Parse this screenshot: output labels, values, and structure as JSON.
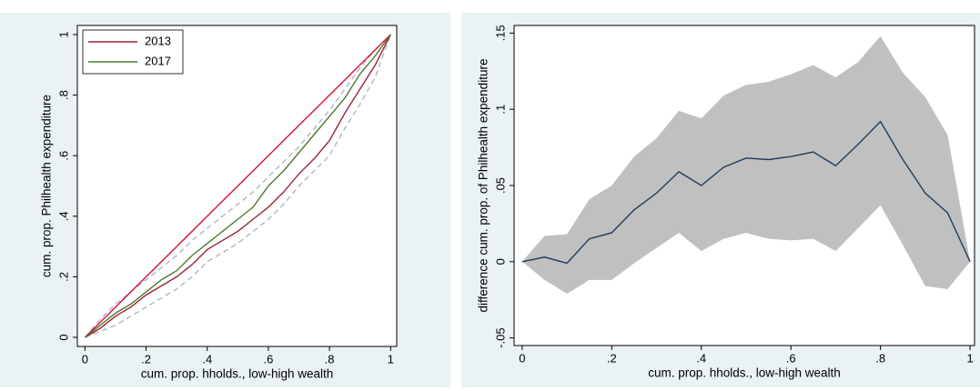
{
  "chart_data": [
    {
      "type": "line",
      "x": [
        0,
        0.05,
        0.1,
        0.15,
        0.2,
        0.25,
        0.3,
        0.35,
        0.4,
        0.45,
        0.5,
        0.55,
        0.6,
        0.65,
        0.7,
        0.75,
        0.8,
        0.85,
        0.9,
        0.95,
        1
      ],
      "xlabel": "cum. prop. hholds., low-high wealth",
      "ylabel": "cum. prop. Philhealth expenditure",
      "xlim": [
        -0.025,
        1.02
      ],
      "ylim": [
        -0.03,
        1.03
      ],
      "xticks": [
        0,
        {
          "value": 0.2,
          "label": ".2"
        },
        {
          "value": 0.4,
          "label": ".4"
        },
        {
          "value": 0.6,
          "label": ".6"
        },
        {
          "value": 0.8,
          "label": ".8"
        },
        1
      ],
      "yticks": [
        0,
        {
          "value": 0.2,
          "label": ".2"
        },
        {
          "value": 0.4,
          "label": ".4"
        },
        {
          "value": 0.6,
          "label": ".6"
        },
        {
          "value": 0.8,
          "label": ".8"
        },
        1
      ],
      "legend": "top-left",
      "series": [
        {
          "color": "#b0b4c8",
          "dash": true,
          "values": [
            0,
            0.06,
            0.11,
            0.15,
            0.19,
            0.23,
            0.27,
            0.32,
            0.36,
            0.4,
            0.44,
            0.48,
            0.53,
            0.58,
            0.63,
            0.69,
            0.75,
            0.82,
            0.89,
            0.95,
            1
          ]
        },
        {
          "color": "#b0b4c8",
          "dash": true,
          "values": [
            0,
            0.02,
            0.04,
            0.07,
            0.1,
            0.13,
            0.16,
            0.2,
            0.25,
            0.28,
            0.31,
            0.35,
            0.39,
            0.44,
            0.5,
            0.55,
            0.6,
            0.69,
            0.77,
            0.86,
            1
          ]
        },
        {
          "color": "#d2143c",
          "values": [
            0,
            0.05,
            0.1,
            0.15,
            0.2,
            0.25,
            0.3,
            0.35,
            0.4,
            0.45,
            0.5,
            0.55,
            0.6,
            0.65,
            0.7,
            0.75,
            0.8,
            0.85,
            0.9,
            0.95,
            1
          ]
        },
        {
          "name": "2013",
          "color": "#9b2335",
          "values": [
            0,
            0.03,
            0.07,
            0.1,
            0.14,
            0.17,
            0.2,
            0.24,
            0.29,
            0.32,
            0.35,
            0.39,
            0.43,
            0.48,
            0.54,
            0.59,
            0.65,
            0.74,
            0.82,
            0.9,
            1
          ]
        },
        {
          "name": "2017",
          "color": "#4d7a2e",
          "values": [
            0,
            0.04,
            0.08,
            0.11,
            0.15,
            0.19,
            0.22,
            0.27,
            0.31,
            0.35,
            0.39,
            0.43,
            0.5,
            0.55,
            0.61,
            0.67,
            0.73,
            0.79,
            0.87,
            0.93,
            1
          ]
        }
      ]
    },
    {
      "type": "line",
      "x": [
        0,
        0.05,
        0.1,
        0.15,
        0.2,
        0.25,
        0.3,
        0.35,
        0.4,
        0.45,
        0.5,
        0.55,
        0.6,
        0.65,
        0.7,
        0.75,
        0.8,
        0.85,
        0.9,
        0.95,
        1
      ],
      "xlabel": "cum. prop. hholds., low-high wealth",
      "ylabel": "difference cum. prop. of Philhealth expenditure",
      "xlim": [
        -0.018,
        1.01
      ],
      "ylim": [
        -0.055,
        0.155
      ],
      "xticks": [
        0,
        {
          "value": 0.2,
          "label": ".2"
        },
        {
          "value": 0.4,
          "label": ".4"
        },
        {
          "value": 0.6,
          "label": ".6"
        },
        {
          "value": 0.8,
          "label": ".8"
        },
        1
      ],
      "yticks": [
        {
          "value": -0.05,
          "label": "-.05"
        },
        0,
        {
          "value": 0.05,
          "label": ".05"
        },
        {
          "value": 0.1,
          "label": ".1"
        },
        {
          "value": 0.15,
          "label": ".15"
        }
      ],
      "band": {
        "color": "#c0c0c0",
        "upper": [
          0,
          0.017,
          0.018,
          0.041,
          0.05,
          0.069,
          0.081,
          0.099,
          0.094,
          0.109,
          0.116,
          0.118,
          0.123,
          0.129,
          0.121,
          0.131,
          0.148,
          0.124,
          0.108,
          0.083,
          0
        ],
        "lower": [
          0,
          -0.012,
          -0.021,
          -0.012,
          -0.012,
          -0.001,
          0.009,
          0.019,
          0.007,
          0.015,
          0.019,
          0.015,
          0.014,
          0.015,
          0.007,
          0.022,
          0.037,
          0.011,
          -0.016,
          -0.018,
          0
        ]
      },
      "series": [
        {
          "color": "#1f3d5c",
          "values": [
            0,
            0.003,
            -0.001,
            0.015,
            0.019,
            0.034,
            0.045,
            0.059,
            0.05,
            0.062,
            0.068,
            0.067,
            0.069,
            0.072,
            0.063,
            0.077,
            0.092,
            0.067,
            0.045,
            0.032,
            0
          ]
        }
      ]
    }
  ]
}
